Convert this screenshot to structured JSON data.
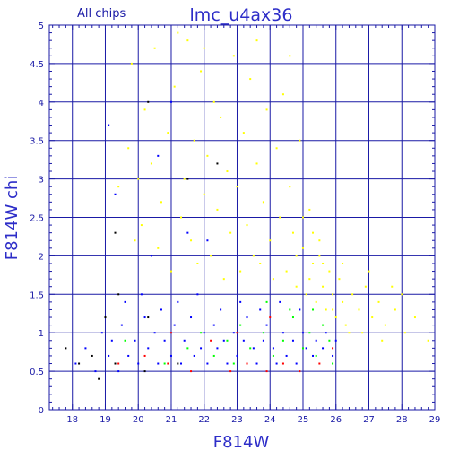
{
  "chart_data": {
    "type": "scatter",
    "title": "lmc_u4ax36",
    "subtitle": "All chips",
    "xlabel": "F814W",
    "ylabel": "F814W chi",
    "xlim": [
      17.3,
      29
    ],
    "ylim": [
      0,
      5
    ],
    "x_ticks": [
      "18",
      "19",
      "20",
      "21",
      "22",
      "23",
      "24",
      "25",
      "26",
      "27",
      "28",
      "29"
    ],
    "y_ticks": [
      "0",
      "0.5",
      "1",
      "1.5",
      "2",
      "2.5",
      "3",
      "3.5",
      "4",
      "4.5",
      "5"
    ],
    "grid": true,
    "axis_color": "#1a1aa6",
    "series": [
      {
        "color": "#ffff00",
        "points": [
          [
            19.4,
            2.9
          ],
          [
            19.7,
            3.4
          ],
          [
            19.8,
            4.5
          ],
          [
            20.1,
            2.4
          ],
          [
            20.2,
            3.9
          ],
          [
            20.4,
            3.2
          ],
          [
            20.5,
            4.7
          ],
          [
            20.6,
            2.1
          ],
          [
            20.7,
            2.7
          ],
          [
            20.9,
            3.6
          ],
          [
            21.0,
            1.8
          ],
          [
            21.1,
            4.2
          ],
          [
            21.3,
            2.5
          ],
          [
            21.4,
            3.0
          ],
          [
            21.5,
            4.8
          ],
          [
            21.6,
            2.2
          ],
          [
            21.7,
            3.5
          ],
          [
            21.8,
            1.9
          ],
          [
            21.9,
            4.4
          ],
          [
            22.0,
            2.8
          ],
          [
            22.1,
            3.3
          ],
          [
            22.2,
            2.0
          ],
          [
            22.3,
            4.0
          ],
          [
            22.4,
            2.6
          ],
          [
            22.5,
            3.8
          ],
          [
            22.6,
            1.7
          ],
          [
            22.7,
            3.1
          ],
          [
            22.8,
            2.3
          ],
          [
            22.9,
            4.6
          ],
          [
            23.0,
            2.9
          ],
          [
            23.1,
            1.8
          ],
          [
            23.2,
            3.6
          ],
          [
            23.3,
            2.4
          ],
          [
            23.4,
            4.3
          ],
          [
            23.5,
            2.0
          ],
          [
            23.6,
            3.2
          ],
          [
            23.7,
            1.9
          ],
          [
            23.8,
            2.7
          ],
          [
            23.9,
            3.9
          ],
          [
            24.0,
            2.2
          ],
          [
            24.1,
            1.7
          ],
          [
            24.2,
            3.4
          ],
          [
            24.3,
            2.5
          ],
          [
            24.4,
            4.1
          ],
          [
            24.5,
            1.8
          ],
          [
            24.6,
            2.9
          ],
          [
            24.7,
            2.3
          ],
          [
            24.8,
            1.6
          ],
          [
            24.9,
            3.5
          ],
          [
            25.0,
            2.1
          ],
          [
            25.1,
            1.5
          ],
          [
            25.2,
            2.6
          ],
          [
            25.3,
            1.9
          ],
          [
            25.4,
            1.4
          ],
          [
            25.5,
            2.2
          ],
          [
            25.6,
            1.6
          ],
          [
            25.7,
            1.3
          ],
          [
            25.8,
            1.8
          ],
          [
            25.9,
            1.5
          ],
          [
            26.0,
            1.2
          ],
          [
            26.1,
            1.7
          ],
          [
            26.2,
            1.4
          ],
          [
            26.3,
            1.1
          ],
          [
            26.5,
            1.5
          ],
          [
            26.7,
            1.3
          ],
          [
            26.9,
            1.6
          ],
          [
            27.1,
            1.2
          ],
          [
            27.3,
            1.4
          ],
          [
            27.5,
            1.1
          ],
          [
            27.8,
            1.3
          ],
          [
            28.1,
            1.0
          ],
          [
            28.4,
            1.2
          ],
          [
            28.8,
            0.9
          ],
          [
            25.0,
            2.5
          ],
          [
            25.3,
            2.3
          ],
          [
            25.5,
            2.0
          ],
          [
            25.2,
            1.7
          ],
          [
            24.8,
            2.0
          ],
          [
            25.6,
            1.9
          ],
          [
            25.9,
            1.3
          ],
          [
            26.2,
            1.9
          ],
          [
            26.4,
            1.0
          ],
          [
            26.8,
            1.0
          ],
          [
            27.0,
            1.8
          ],
          [
            27.4,
            0.9
          ],
          [
            27.7,
            1.6
          ],
          [
            28.0,
            1.5
          ],
          [
            21.2,
            4.9
          ],
          [
            22.0,
            4.7
          ],
          [
            23.6,
            4.8
          ],
          [
            24.6,
            4.6
          ],
          [
            20.0,
            3.0
          ],
          [
            19.9,
            2.2
          ]
        ]
      },
      {
        "color": "#00ff00",
        "points": [
          [
            21.5,
            0.8
          ],
          [
            21.9,
            1.0
          ],
          [
            22.3,
            0.7
          ],
          [
            22.7,
            0.9
          ],
          [
            23.1,
            1.1
          ],
          [
            23.4,
            0.8
          ],
          [
            23.8,
            1.0
          ],
          [
            24.1,
            0.7
          ],
          [
            24.4,
            0.9
          ],
          [
            24.7,
            1.2
          ],
          [
            25.0,
            0.8
          ],
          [
            25.2,
            1.0
          ],
          [
            25.4,
            0.7
          ],
          [
            25.6,
            1.1
          ],
          [
            25.8,
            0.9
          ],
          [
            25.9,
            0.6
          ],
          [
            24.6,
            1.3
          ],
          [
            23.9,
            1.4
          ],
          [
            25.3,
            1.3
          ],
          [
            20.8,
            0.6
          ],
          [
            19.6,
            0.9
          ],
          [
            22.9,
            0.6
          ]
        ]
      },
      {
        "color": "#ff0000",
        "points": [
          [
            20.2,
            0.7
          ],
          [
            20.9,
            0.6
          ],
          [
            21.6,
            0.5
          ],
          [
            22.2,
            0.9
          ],
          [
            22.8,
            0.5
          ],
          [
            23.3,
            0.6
          ],
          [
            23.9,
            0.5
          ],
          [
            24.4,
            0.6
          ],
          [
            24.9,
            0.5
          ],
          [
            25.5,
            0.6
          ],
          [
            25.9,
            0.8
          ],
          [
            24.0,
            1.2
          ],
          [
            21.0,
            1.0
          ],
          [
            23.0,
            1.0
          ],
          [
            19.4,
            0.6
          ]
        ]
      },
      {
        "color": "#0000ff",
        "points": [
          [
            18.1,
            0.6
          ],
          [
            18.4,
            0.8
          ],
          [
            18.7,
            0.5
          ],
          [
            18.9,
            1.0
          ],
          [
            19.1,
            0.7
          ],
          [
            19.2,
            0.9
          ],
          [
            19.4,
            0.5
          ],
          [
            19.5,
            1.1
          ],
          [
            19.7,
            0.7
          ],
          [
            19.9,
            0.9
          ],
          [
            20.0,
            0.6
          ],
          [
            20.2,
            1.2
          ],
          [
            20.3,
            0.8
          ],
          [
            20.5,
            1.0
          ],
          [
            20.6,
            0.6
          ],
          [
            20.8,
            0.9
          ],
          [
            21.0,
            0.7
          ],
          [
            21.1,
            1.1
          ],
          [
            21.3,
            0.6
          ],
          [
            21.4,
            0.9
          ],
          [
            21.6,
            1.2
          ],
          [
            21.7,
            0.7
          ],
          [
            21.9,
            0.8
          ],
          [
            22.0,
            1.0
          ],
          [
            22.1,
            0.6
          ],
          [
            22.3,
            1.1
          ],
          [
            22.4,
            0.8
          ],
          [
            22.6,
            0.9
          ],
          [
            22.7,
            0.6
          ],
          [
            22.9,
            1.0
          ],
          [
            23.0,
            0.7
          ],
          [
            23.2,
            0.9
          ],
          [
            23.3,
            1.2
          ],
          [
            23.5,
            0.8
          ],
          [
            23.6,
            0.6
          ],
          [
            23.8,
            0.9
          ],
          [
            23.9,
            1.1
          ],
          [
            24.1,
            0.8
          ],
          [
            24.2,
            0.6
          ],
          [
            24.4,
            1.0
          ],
          [
            24.5,
            0.7
          ],
          [
            24.7,
            0.9
          ],
          [
            24.8,
            0.6
          ],
          [
            25.0,
            1.0
          ],
          [
            25.1,
            0.8
          ],
          [
            25.3,
            0.7
          ],
          [
            25.4,
            0.9
          ],
          [
            25.6,
            0.8
          ],
          [
            25.7,
            1.0
          ],
          [
            25.9,
            0.7
          ],
          [
            26.0,
            0.9
          ],
          [
            19.6,
            1.4
          ],
          [
            20.1,
            1.5
          ],
          [
            20.7,
            1.3
          ],
          [
            21.2,
            1.4
          ],
          [
            21.8,
            1.5
          ],
          [
            22.5,
            1.3
          ],
          [
            23.1,
            1.4
          ],
          [
            23.7,
            1.3
          ],
          [
            24.3,
            1.4
          ],
          [
            24.9,
            1.3
          ],
          [
            19.3,
            2.8
          ],
          [
            20.4,
            2.0
          ],
          [
            21.5,
            2.3
          ],
          [
            22.1,
            2.2
          ],
          [
            20.6,
            3.3
          ],
          [
            21.0,
            4.0
          ],
          [
            19.1,
            3.7
          ]
        ]
      },
      {
        "color": "#000000",
        "points": [
          [
            17.8,
            0.8
          ],
          [
            18.2,
            0.6
          ],
          [
            18.6,
            0.7
          ],
          [
            18.8,
            0.4
          ],
          [
            19.0,
            1.2
          ],
          [
            19.3,
            0.6
          ],
          [
            20.2,
            0.5
          ],
          [
            21.2,
            0.6
          ],
          [
            19.4,
            1.5
          ],
          [
            20.3,
            1.2
          ],
          [
            20.3,
            4.0
          ],
          [
            21.5,
            3.0
          ],
          [
            22.4,
            3.2
          ],
          [
            19.3,
            2.3
          ]
        ]
      }
    ]
  }
}
